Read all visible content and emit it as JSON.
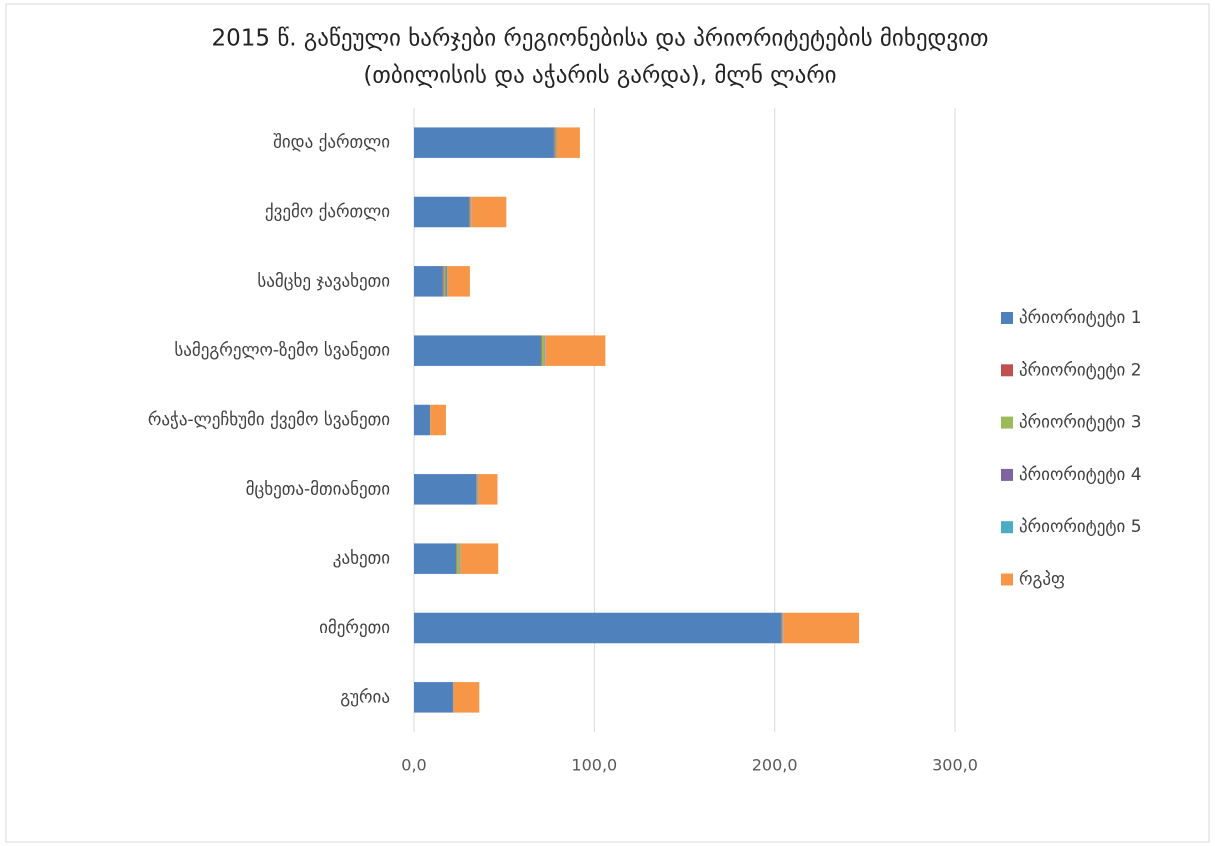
{
  "chart_data": {
    "type": "stacked_bar_horizontal",
    "title": "2015 წ. გაწეული ხარჯები რეგიონებისა და პრიორიტეტების მიხედვით",
    "subtitle": "(თბილისის და აჭარის გარდა), მლნ ლარი",
    "categories": [
      "შიდა ქართლი",
      "ქვემო ქართლი",
      "სამცხე ჯავახეთი",
      "სამეგრელო-ზემო სვანეთი",
      "რაჭა-ლეჩხუმი ქვემო სვანეთი",
      "მცხეთა-მთიანეთი",
      "კახეთი",
      "იმერეთი",
      "გურია"
    ],
    "series": [
      {
        "name": "პრიორიტეტი 1",
        "color": "#4f81bd",
        "values": [
          77.6,
          30.5,
          16.0,
          70.4,
          8.9,
          34.4,
          23.3,
          203.5,
          21.6
        ]
      },
      {
        "name": "პრიორიტეტი 2",
        "color": "#c0504d",
        "values": [
          0.3,
          0.3,
          0.5,
          0.3,
          0.1,
          0.3,
          0.3,
          0.3,
          0.1
        ]
      },
      {
        "name": "პრიორიტეტი 3",
        "color": "#9bbb59",
        "values": [
          0.5,
          0.4,
          1.0,
          1.5,
          0.1,
          0.4,
          1.5,
          0.4,
          0.1
        ]
      },
      {
        "name": "პრიორიტეტი 4",
        "color": "#8064a2",
        "values": [
          0.3,
          0.3,
          0.5,
          0.3,
          0.0,
          0.3,
          0.3,
          0.3,
          0.1
        ]
      },
      {
        "name": "პრიორიტეტი 5",
        "color": "#4bacc6",
        "values": [
          0.3,
          0.2,
          0.5,
          0.3,
          0.0,
          0.3,
          0.3,
          0.3,
          0.0
        ]
      },
      {
        "name": "რგპფ",
        "color": "#f79646",
        "values": [
          13.0,
          19.5,
          12.5,
          33.3,
          8.6,
          10.6,
          21.0,
          42.0,
          14.3
        ]
      }
    ],
    "xlim": [
      0,
      300
    ],
    "xticks": [
      {
        "value": 0,
        "label": "0,0"
      },
      {
        "value": 100,
        "label": "100,0"
      },
      {
        "value": 200,
        "label": "200,0"
      },
      {
        "value": 300,
        "label": "300,0"
      }
    ],
    "grid": true,
    "legend": "right"
  }
}
